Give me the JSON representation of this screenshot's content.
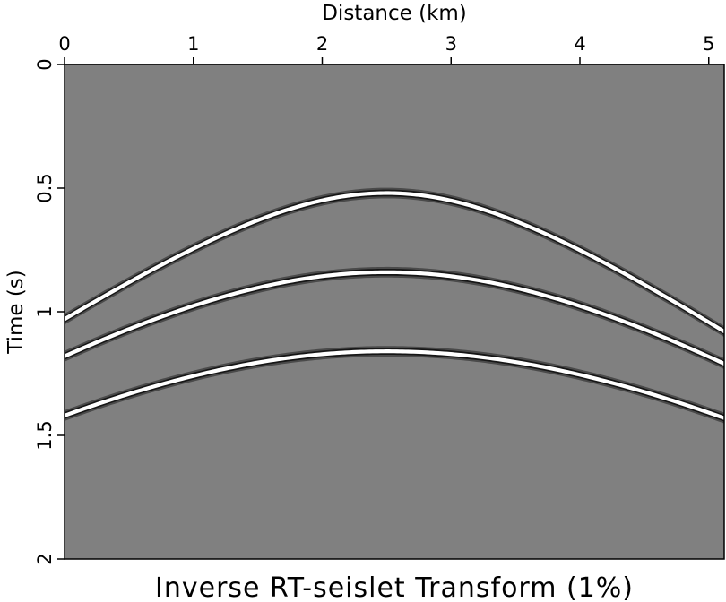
{
  "chart_data": {
    "type": "heatmap",
    "title": "Inverse RT-seislet Transform (1%)",
    "xlabel": "Distance (km)",
    "ylabel": "Time (s)",
    "xlim": [
      0,
      5.12
    ],
    "ylim": [
      2,
      0
    ],
    "x_axis_position": "top",
    "x_ticks": [
      0,
      1,
      2,
      3,
      4,
      5
    ],
    "x_tick_labels": [
      "0",
      "1",
      "2",
      "3",
      "4",
      "5"
    ],
    "y_ticks": [
      0,
      0.5,
      1,
      1.5,
      2
    ],
    "y_tick_labels": [
      "0",
      "0.5",
      "1",
      "1.5",
      "2"
    ],
    "background_gray": "#808080",
    "grid": false,
    "events": [
      {
        "apex_x": 2.5,
        "apex_t": 0.52,
        "t_left": 1.03,
        "t_right": 1.08
      },
      {
        "apex_x": 2.5,
        "apex_t": 0.84,
        "t_left": 1.18,
        "t_right": 1.21
      },
      {
        "apex_x": 2.5,
        "apex_t": 1.16,
        "t_left": 1.42,
        "t_right": 1.43
      }
    ]
  }
}
